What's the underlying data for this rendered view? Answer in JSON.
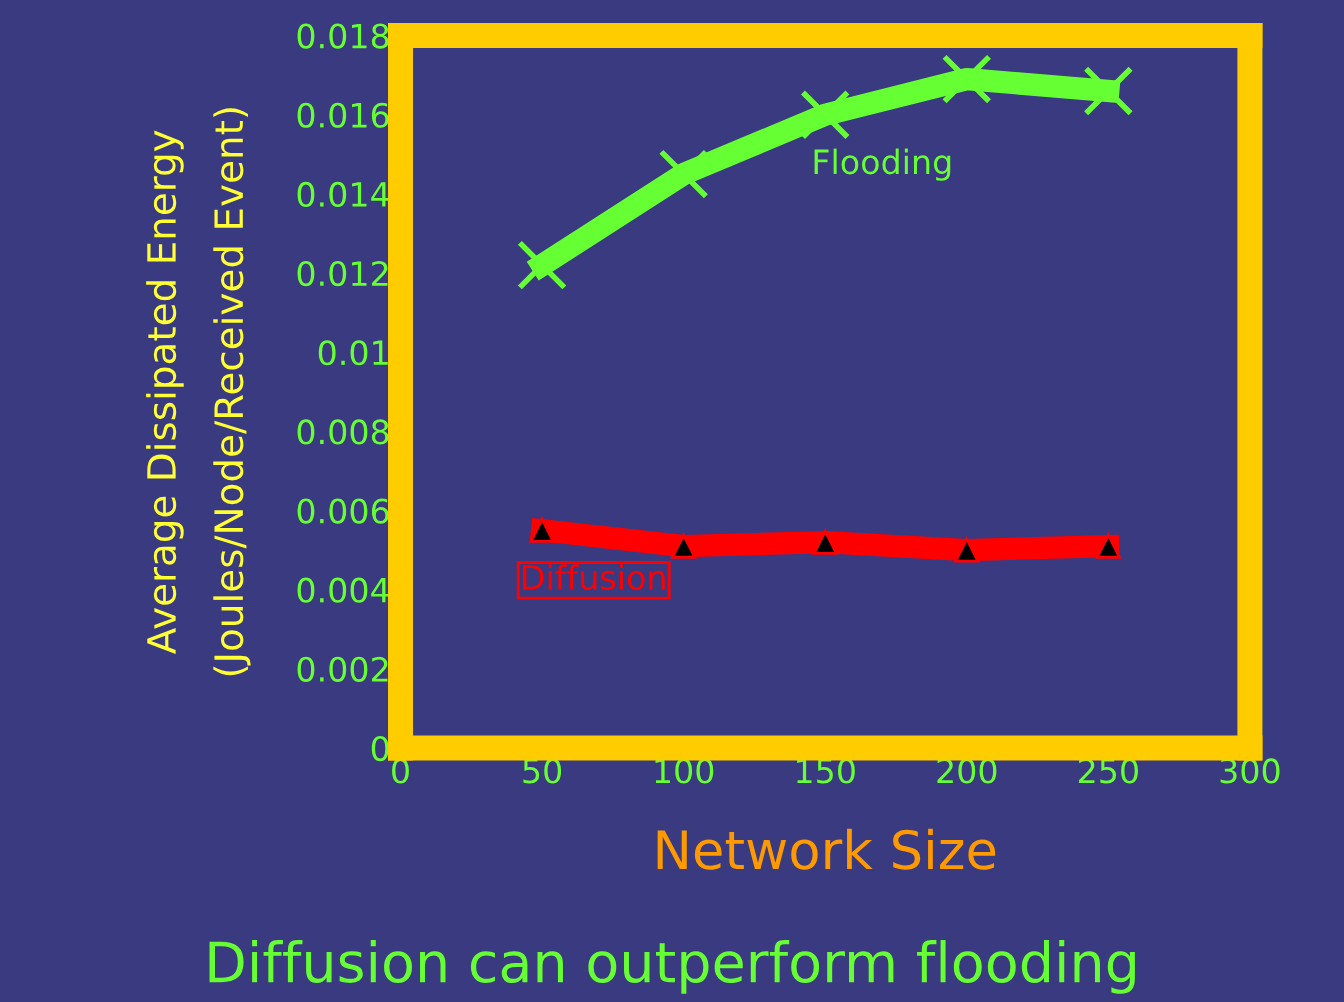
{
  "chart_data": {
    "type": "line",
    "title": "Diffusion can outperform flooding",
    "xlabel": "Network Size",
    "ylabel": "Average Dissipated Energy\n(Joules/Node/Received Event)",
    "x": [
      50,
      100,
      150,
      200,
      250
    ],
    "series": [
      {
        "name": "Flooding",
        "color": "#66ff33",
        "marker": "cross",
        "values": [
          0.0122,
          0.0145,
          0.016,
          0.0169,
          0.0166
        ]
      },
      {
        "name": "Diffusion",
        "color": "#ff0000",
        "marker": "triangle",
        "values": [
          0.0055,
          0.0051,
          0.0052,
          0.005,
          0.0051
        ]
      }
    ],
    "xlim": [
      0,
      300
    ],
    "xticks": [
      0,
      50,
      100,
      150,
      200,
      250,
      300
    ],
    "ylim": [
      0,
      0.018
    ],
    "yticks": [
      0,
      0.002,
      0.004,
      0.006,
      0.008,
      0.01,
      0.012,
      0.014,
      0.016,
      0.018
    ],
    "grid": false,
    "legend": false,
    "line_style": "solid"
  }
}
